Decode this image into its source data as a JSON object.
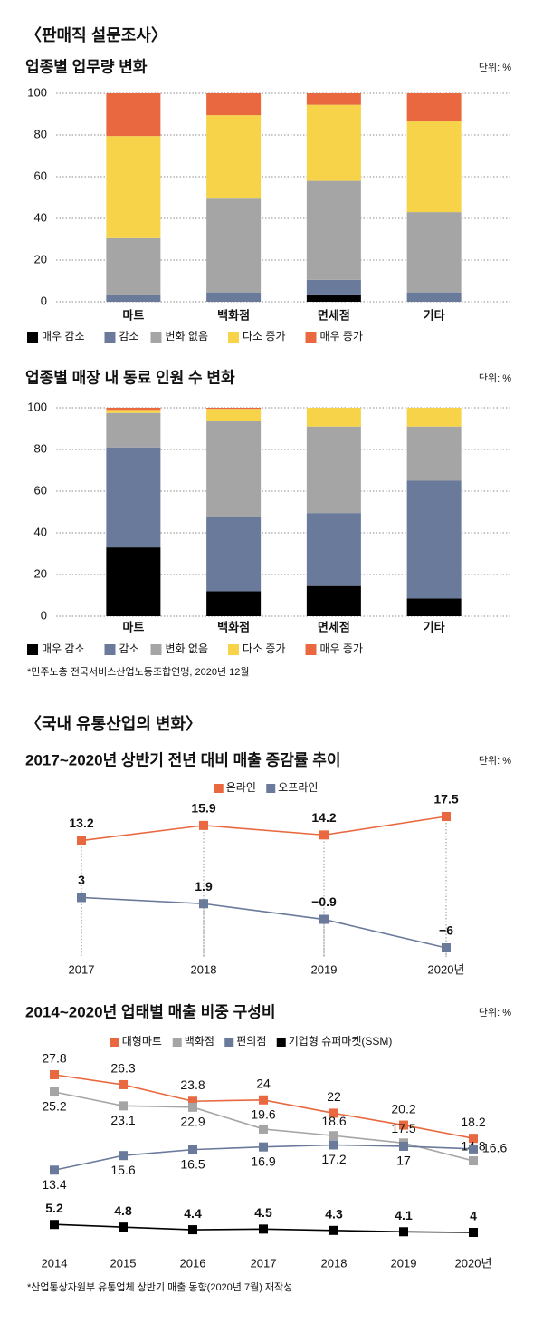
{
  "sections": [
    {
      "title": "〈판매직 설문조사〉",
      "note": "*민주노총 전국서비스산업노동조합연맹, 2020년 12월"
    },
    {
      "title": "〈국내 유통산업의 변화〉",
      "note": "*산업통상자원부 유통업체 상반기 매출 동향(2020년 7월) 재작성"
    }
  ],
  "chart_data": [
    {
      "type": "stacked_bar",
      "title": "업종별 업무량 변화",
      "unit": "단위: %",
      "categories": [
        "마트",
        "백화점",
        "면세점",
        "기타"
      ],
      "ylim": [
        0,
        100
      ],
      "yticks": [
        0,
        20,
        40,
        60,
        80,
        100
      ],
      "grid": true,
      "series": [
        {
          "name": "매우 감소",
          "color": "#000000",
          "values": [
            0,
            0,
            3.5,
            0
          ]
        },
        {
          "name": "감소",
          "color": "#6a7a9b",
          "values": [
            3.5,
            4.5,
            7,
            4.5
          ]
        },
        {
          "name": "변화 없음",
          "color": "#a5a5a5",
          "values": [
            27,
            45,
            47.5,
            38.5
          ]
        },
        {
          "name": "다소 증가",
          "color": "#f6d348",
          "values": [
            49,
            40,
            36.5,
            43.5
          ]
        },
        {
          "name": "매우 증가",
          "color": "#e9683f",
          "values": [
            20.5,
            10.5,
            5.5,
            13.5
          ]
        }
      ]
    },
    {
      "type": "stacked_bar",
      "title": "업종별 매장 내 동료 인원 수 변화",
      "unit": "단위: %",
      "categories": [
        "마트",
        "백화점",
        "면세점",
        "기타"
      ],
      "ylim": [
        0,
        100
      ],
      "yticks": [
        0,
        20,
        40,
        60,
        80,
        100
      ],
      "grid": true,
      "series": [
        {
          "name": "매우 감소",
          "color": "#000000",
          "values": [
            33,
            12,
            14.5,
            8.5
          ]
        },
        {
          "name": "감소",
          "color": "#6a7a9b",
          "values": [
            48,
            35.5,
            35,
            56.5
          ]
        },
        {
          "name": "변화 없음",
          "color": "#a5a5a5",
          "values": [
            16.5,
            46,
            41.5,
            26
          ]
        },
        {
          "name": "다소 증가",
          "color": "#f6d348",
          "values": [
            1.5,
            6,
            9,
            9
          ]
        },
        {
          "name": "매우 증가",
          "color": "#e9683f",
          "values": [
            1,
            0.5,
            0,
            0
          ]
        }
      ]
    },
    {
      "type": "line",
      "title": "2017~2020년 상반기 전년 대비 매출 증감률 추이",
      "unit": "단위: %",
      "categories": [
        "2017",
        "2018",
        "2019",
        "2020년"
      ],
      "guides": true,
      "series": [
        {
          "name": "온라인",
          "color": "#e9683f",
          "values": [
            13.2,
            15.9,
            14.2,
            17.5
          ]
        },
        {
          "name": "오프라인",
          "color": "#6a7a9b",
          "values": [
            3,
            1.9,
            -0.9,
            -6
          ],
          "value_labels": [
            "3",
            "1.9",
            "−0.9",
            "−6"
          ]
        }
      ]
    },
    {
      "type": "line",
      "title": "2014~2020년 업태별 매출 비중 구성비",
      "unit": "단위: %",
      "categories": [
        "2014",
        "2015",
        "2016",
        "2017",
        "2018",
        "2019",
        "2020년"
      ],
      "guides": false,
      "series": [
        {
          "name": "대형마트",
          "color": "#e9683f",
          "values": [
            27.8,
            26.3,
            23.8,
            24,
            22,
            20.2,
            18.2
          ]
        },
        {
          "name": "백화점",
          "color": "#a5a5a5",
          "values": [
            25.2,
            23.1,
            22.9,
            19.6,
            18.6,
            17.5,
            14.8
          ]
        },
        {
          "name": "편의점",
          "color": "#6a7a9b",
          "values": [
            13.4,
            15.6,
            16.5,
            16.9,
            17.2,
            17,
            16.6
          ]
        },
        {
          "name": "기업형 슈퍼마켓(SSM)",
          "color": "#000000",
          "values": [
            5.2,
            4.8,
            4.4,
            4.5,
            4.3,
            4.1,
            4
          ]
        }
      ]
    }
  ]
}
